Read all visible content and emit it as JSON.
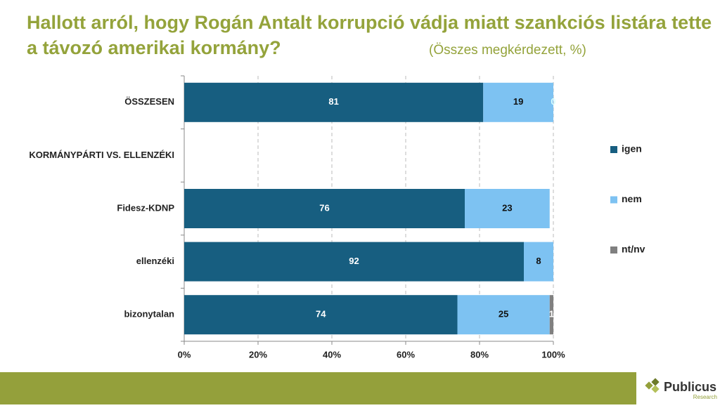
{
  "chart_data": {
    "type": "stacked-bar-horizontal",
    "title": "Hallott arról, hogy Rogán Antalt korrupció vádja miatt szankciós listára tette a távozó amerikai kormány?",
    "subtitle": "(Összes megkérdezett, %)",
    "categories": [
      "ÖSSZESEN",
      "KORMÁNYPÁRTI VS. ELLENZÉKI",
      "Fidesz-KDNP",
      "ellenzéki",
      "bizonytalan"
    ],
    "series": [
      {
        "name": "igen",
        "color": "#175e80",
        "values": [
          81,
          null,
          76,
          92,
          74
        ]
      },
      {
        "name": "nem",
        "color": "#7dc2f2",
        "values": [
          19,
          null,
          23,
          8,
          25
        ]
      },
      {
        "name": "nt/nv",
        "color": "#808080",
        "values": [
          0,
          null,
          null,
          null,
          1
        ]
      }
    ],
    "xlim": [
      0,
      100
    ],
    "xticks": [
      {
        "value": 0,
        "label": "0%"
      },
      {
        "value": 20,
        "label": "20%"
      },
      {
        "value": 40,
        "label": "40%"
      },
      {
        "value": 60,
        "label": "60%"
      },
      {
        "value": 80,
        "label": "80%"
      },
      {
        "value": 100,
        "label": "100%"
      }
    ],
    "grid": true,
    "legend": "right",
    "logo": {
      "name": "Publicus",
      "sub": "Research"
    }
  }
}
